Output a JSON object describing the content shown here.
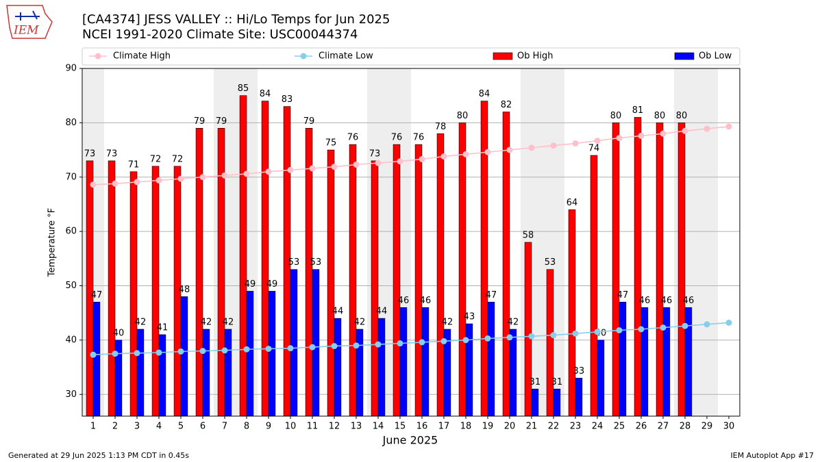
{
  "logo_text": "IEM",
  "chart_data": {
    "type": "bar",
    "title": "[CA4374] JESS VALLEY :: Hi/Lo Temps for Jun 2025",
    "subtitle": "NCEI 1991-2020 Climate Site: USC00044374",
    "xlabel": "June 2025",
    "ylabel": "Temperature °F",
    "x": [
      1,
      2,
      3,
      4,
      5,
      6,
      7,
      8,
      9,
      10,
      11,
      12,
      13,
      14,
      15,
      16,
      17,
      18,
      19,
      20,
      21,
      22,
      23,
      24,
      25,
      26,
      27,
      28,
      29,
      30
    ],
    "xlim": [
      0.5,
      30.5
    ],
    "xticks": [
      1,
      2,
      3,
      4,
      5,
      6,
      7,
      8,
      9,
      10,
      11,
      12,
      13,
      14,
      15,
      16,
      17,
      18,
      19,
      20,
      21,
      22,
      23,
      24,
      25,
      26,
      27,
      28,
      29,
      30
    ],
    "ylim": [
      26,
      90
    ],
    "yticks": [
      30,
      40,
      50,
      60,
      70,
      80,
      90
    ],
    "grid": true,
    "shaded_x": [
      1,
      7,
      8,
      14,
      15,
      21,
      22,
      28,
      29
    ],
    "series": [
      {
        "name": "Climate High",
        "style": "line",
        "color": "#ffc0cb",
        "values": [
          68.6,
          68.8,
          69.1,
          69.4,
          69.7,
          70.0,
          70.3,
          70.6,
          71.0,
          71.3,
          71.6,
          71.9,
          72.3,
          72.6,
          72.9,
          73.3,
          73.8,
          74.2,
          74.6,
          75.0,
          75.4,
          75.8,
          76.2,
          76.7,
          77.2,
          77.6,
          78.0,
          78.5,
          78.9,
          79.3
        ]
      },
      {
        "name": "Climate Low",
        "style": "line",
        "color": "#87ceeb",
        "values": [
          37.3,
          37.5,
          37.6,
          37.7,
          37.9,
          38.0,
          38.1,
          38.3,
          38.4,
          38.5,
          38.7,
          38.9,
          39.0,
          39.2,
          39.4,
          39.6,
          39.8,
          40.0,
          40.3,
          40.5,
          40.7,
          40.9,
          41.2,
          41.5,
          41.8,
          42.0,
          42.3,
          42.6,
          42.9,
          43.2
        ]
      },
      {
        "name": "Ob High",
        "style": "bar",
        "color": "#ff0000",
        "values": [
          73,
          73,
          71,
          72,
          72,
          79,
          79,
          85,
          84,
          83,
          79,
          75,
          76,
          73,
          76,
          76,
          78,
          80,
          84,
          82,
          58,
          53,
          64,
          74,
          80,
          81,
          80,
          80,
          null,
          null
        ]
      },
      {
        "name": "Ob Low",
        "style": "bar",
        "color": "#0000ff",
        "values": [
          47,
          40,
          42,
          41,
          48,
          42,
          42,
          49,
          49,
          53,
          53,
          44,
          42,
          44,
          46,
          46,
          42,
          43,
          47,
          42,
          31,
          31,
          33,
          40,
          47,
          46,
          46,
          46,
          null,
          null
        ]
      }
    ],
    "footer_left": "Generated at 29 Jun 2025 1:13 PM CDT in 0.45s",
    "footer_right": "IEM Autoplot App #17"
  }
}
